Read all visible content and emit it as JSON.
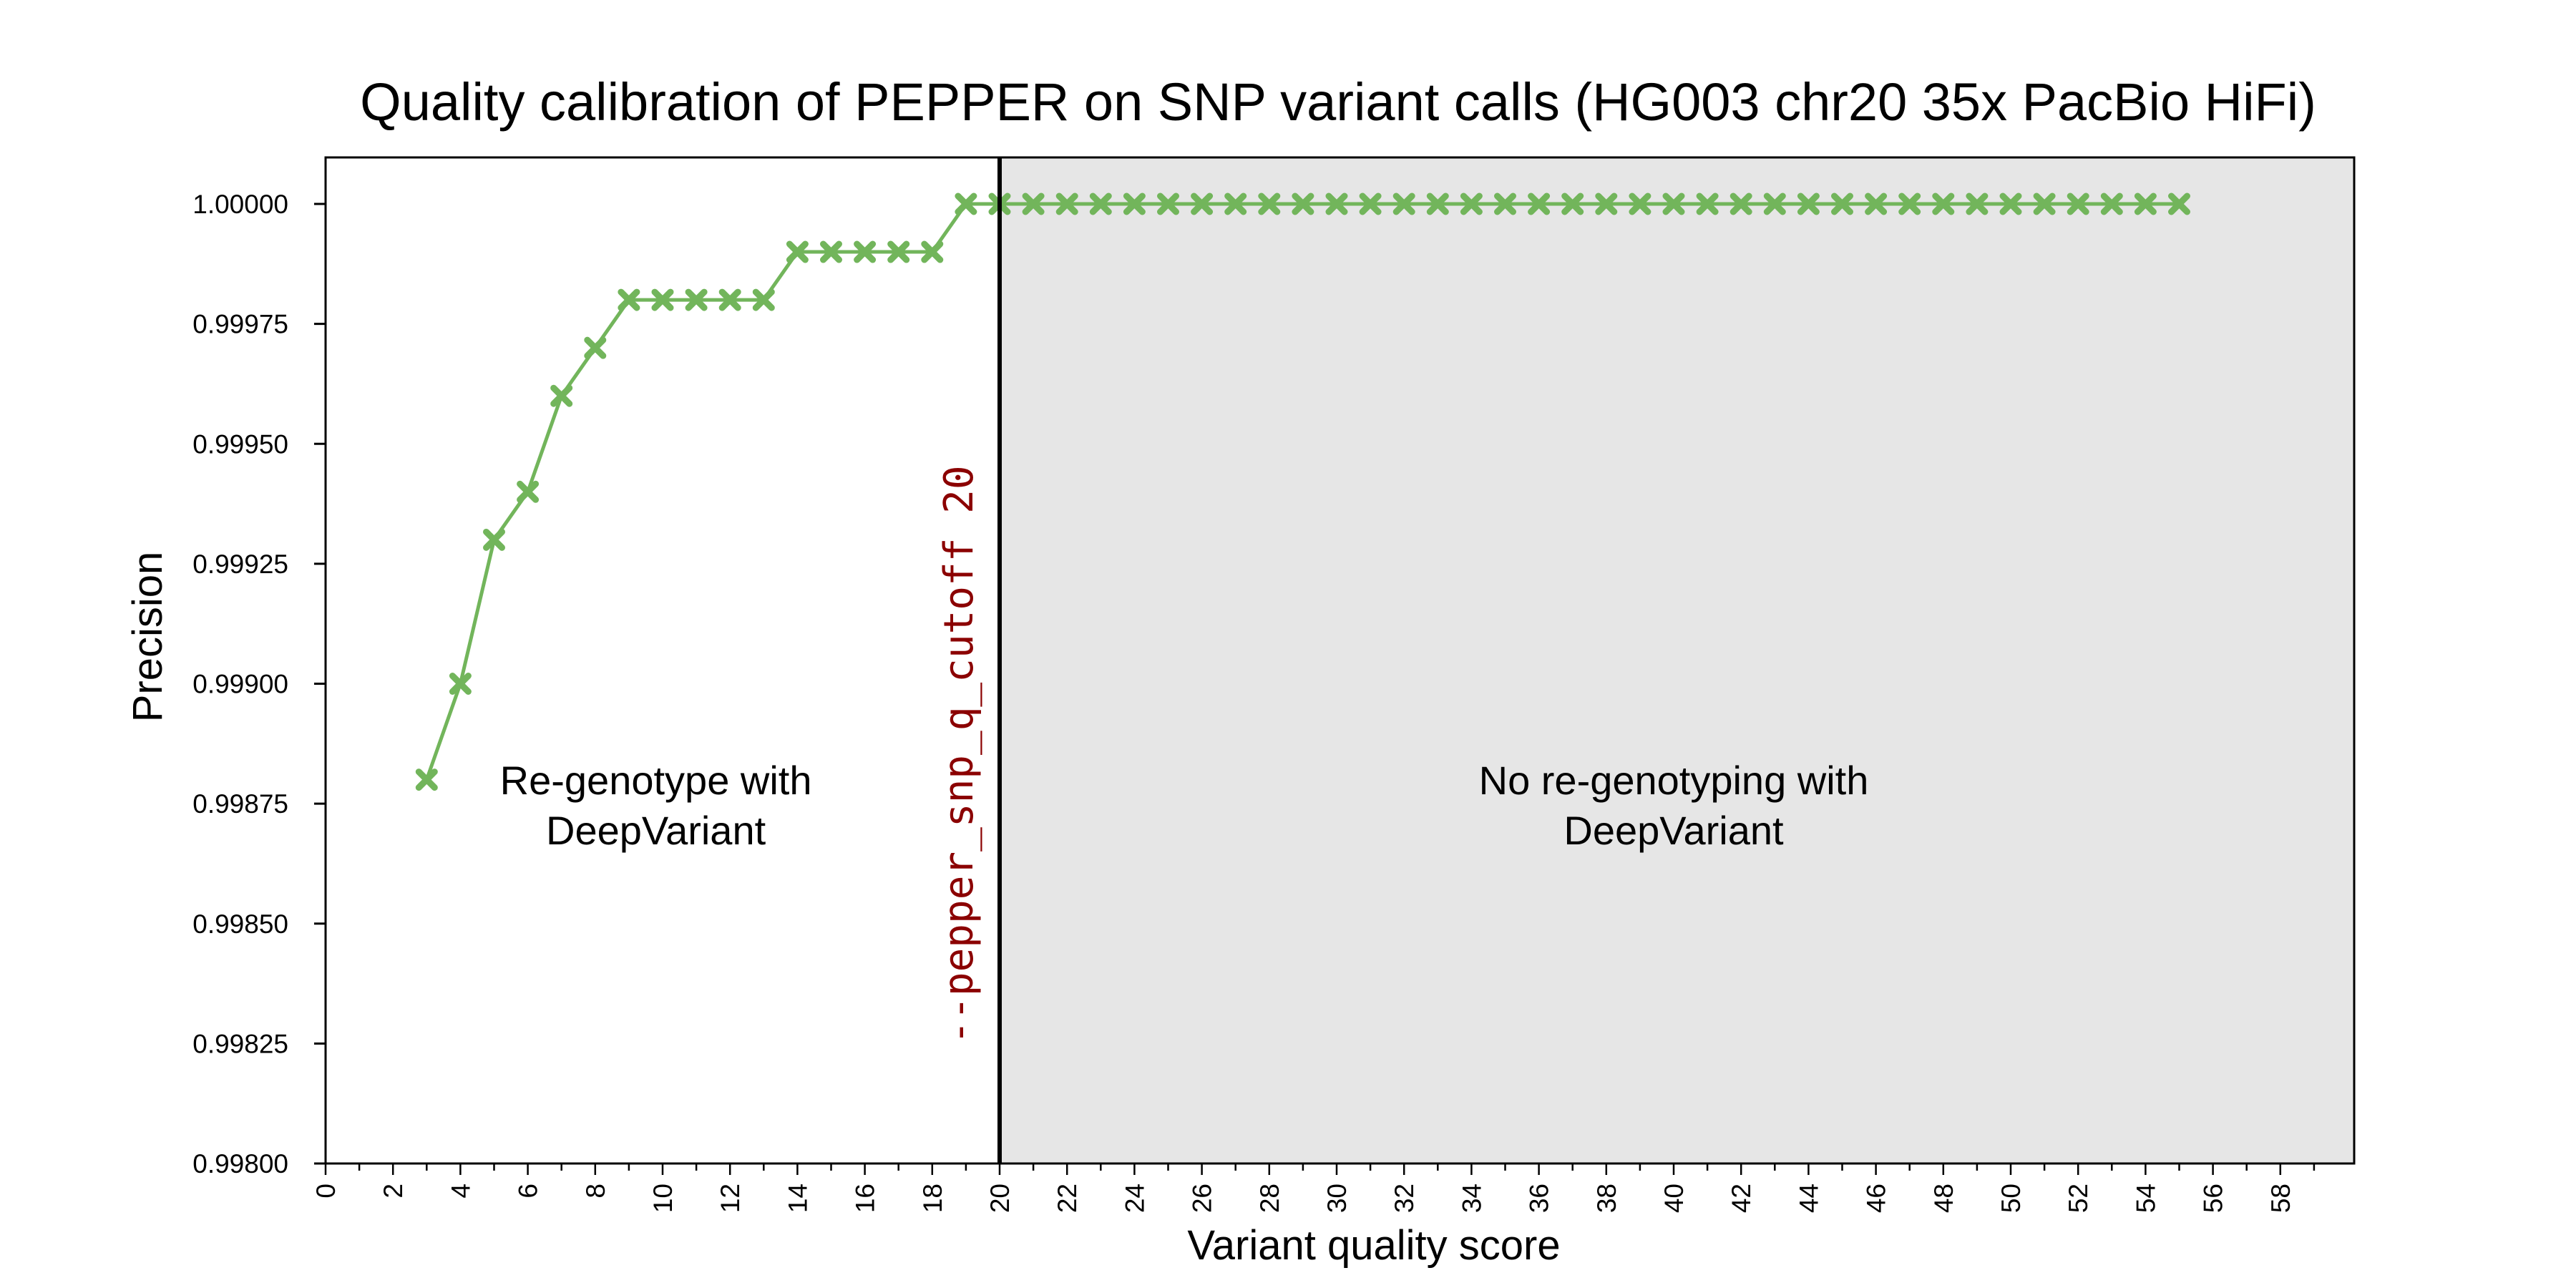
{
  "chart_data": {
    "type": "line",
    "title": "Quality calibration of PEPPER on SNP variant calls (HG003 chr20 35x PacBio HiFi)",
    "xlabel": "Variant quality score",
    "ylabel": "Precision",
    "xlim": [
      0,
      60
    ],
    "ylim": [
      0.998,
      1.0001
    ],
    "x_ticks": [
      0,
      2,
      4,
      6,
      8,
      10,
      12,
      14,
      16,
      18,
      20,
      22,
      24,
      26,
      28,
      30,
      32,
      34,
      36,
      38,
      40,
      42,
      44,
      46,
      48,
      50,
      52,
      54,
      56,
      58
    ],
    "y_ticks": [
      0.998,
      0.99825,
      0.9985,
      0.99875,
      0.999,
      0.99925,
      0.9995,
      0.99975,
      1.0
    ],
    "y_tick_labels": [
      "0.99800",
      "0.99825",
      "0.99850",
      "0.99875",
      "0.99900",
      "0.99925",
      "0.99950",
      "0.99975",
      "1.00000"
    ],
    "series": [
      {
        "color": "#72b55b",
        "marker": "X",
        "x": [
          3,
          4,
          5,
          6,
          7,
          8,
          9,
          10,
          11,
          12,
          13,
          14,
          15,
          16,
          17,
          18,
          19,
          20,
          21,
          22,
          23,
          24,
          25,
          26,
          27,
          28,
          29,
          30,
          31,
          32,
          33,
          34,
          35,
          36,
          37,
          38,
          39,
          40,
          41,
          42,
          43,
          44,
          45,
          46,
          47,
          48,
          49,
          50,
          51,
          52,
          53,
          54,
          55
        ],
        "y": [
          0.9988,
          0.999,
          0.9993,
          0.9994,
          0.9996,
          0.9997,
          0.9998,
          0.9998,
          0.9998,
          0.9998,
          0.9998,
          0.9999,
          0.9999,
          0.9999,
          0.9999,
          0.9999,
          1.0,
          1.0,
          1.0,
          1.0,
          1.0,
          1.0,
          1.0,
          1.0,
          1.0,
          1.0,
          1.0,
          1.0,
          1.0,
          1.0,
          1.0,
          1.0,
          1.0,
          1.0,
          1.0,
          1.0,
          1.0,
          1.0,
          1.0,
          1.0,
          1.0,
          1.0,
          1.0,
          1.0,
          1.0,
          1.0,
          1.0,
          1.0,
          1.0,
          1.0,
          1.0,
          1.0,
          1.0
        ]
      }
    ],
    "cutoff": {
      "x": 20,
      "label": "--pepper_snp_q_cutoff 20",
      "label_color": "#8b0000",
      "line_color": "#000000"
    },
    "shaded_region": {
      "x_from": 20,
      "x_to": 60,
      "color": "#e6e6e6"
    },
    "annotations": [
      {
        "lines": [
          "Re-genotype with",
          "DeepVariant"
        ],
        "x": 9.8,
        "y": 0.998755
      },
      {
        "lines": [
          "No re-genotyping with",
          "DeepVariant"
        ],
        "x": 40.0,
        "y": 0.998755
      }
    ],
    "grid": false,
    "legend": "none"
  }
}
